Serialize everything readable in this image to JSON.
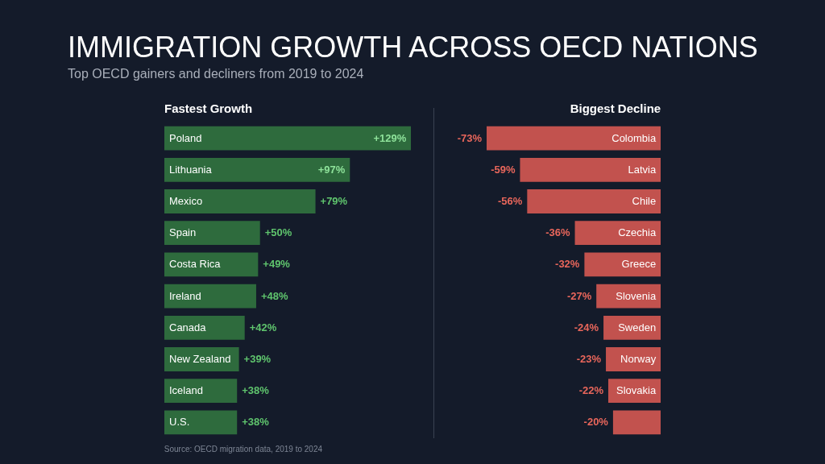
{
  "chart_data": [
    {
      "type": "other",
      "title": "IMMIGRATION GROWTH ACROSS OECD NATIONS",
      "subtitle": "Top OECD gainers and decliners from 2019 to 2024"
    },
    {
      "type": "bar",
      "orientation": "horizontal",
      "title": "Fastest Growth",
      "categories": [
        "Poland",
        "Lithuania",
        "Mexico",
        "Spain",
        "Costa Rica",
        "Ireland",
        "Canada",
        "New Zealand",
        "Iceland",
        "U.S."
      ],
      "values": [
        129,
        97,
        79,
        50,
        49,
        48,
        42,
        39,
        38,
        38
      ],
      "color": "#2e6b3d",
      "value_labels": [
        "+129%",
        "+97%",
        "+79%",
        "+50%",
        "+49%",
        "+48%",
        "+42%",
        "+39%",
        "+38%",
        "+38%"
      ],
      "annotations": [
        "Source: OECD migration data, 2019 to 2024"
      ]
    },
    {
      "type": "bar",
      "orientation": "horizontal",
      "title": "Biggest Decline",
      "categories": [
        "Colombia",
        "Latvia",
        "Chile",
        "Czechia",
        "Greece",
        "Slovenia",
        "Sweden",
        "Norway",
        "Slovakia",
        null
      ],
      "values": [
        -73,
        -59,
        -56,
        -36,
        -32,
        -27,
        -24,
        -23,
        -22,
        -20
      ],
      "color": "#c2524e",
      "value_labels": [
        "-73%",
        "-59%",
        "-56%",
        "-36%",
        "-32%",
        "-27%",
        "-24%",
        "-23%",
        "-22%",
        "-20%"
      ]
    }
  ]
}
